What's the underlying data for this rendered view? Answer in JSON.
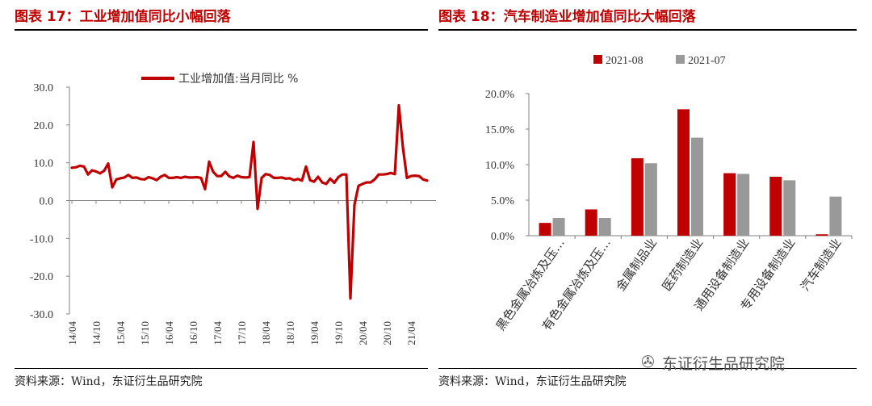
{
  "left_title": "图表 17：工业增加值同比小幅回落",
  "right_title": "图表 18：汽车制造业增加值同比大幅回落",
  "left_source": "资料来源：Wind，东证衍生品研究院",
  "right_source": "资料来源：Wind，东证衍生品研究院",
  "watermark": "东证衍生品研究院",
  "watermark_icon": "wechat-icon",
  "colors": {
    "red": "#c00000",
    "gray": "#999999",
    "axis": "#808080"
  },
  "chart_data": [
    {
      "type": "line",
      "series": [
        {
          "name": "工业增加值:当月同比 %",
          "x": [
            "2014-04",
            "2014-05",
            "2014-06",
            "2014-07",
            "2014-08",
            "2014-09",
            "2014-10",
            "2014-11",
            "2014-12",
            "2015-01",
            "2015-02",
            "2015-03",
            "2015-04",
            "2015-05",
            "2015-06",
            "2015-07",
            "2015-08",
            "2015-09",
            "2015-10",
            "2015-11",
            "2015-12",
            "2016-01",
            "2016-02",
            "2016-03",
            "2016-04",
            "2016-05",
            "2016-06",
            "2016-07",
            "2016-08",
            "2016-09",
            "2016-10",
            "2016-11",
            "2016-12",
            "2017-01",
            "2017-02",
            "2017-03",
            "2017-04",
            "2017-05",
            "2017-06",
            "2017-07",
            "2017-08",
            "2017-09",
            "2017-10",
            "2017-11",
            "2017-12",
            "2018-01",
            "2018-02",
            "2018-03",
            "2018-04",
            "2018-05",
            "2018-06",
            "2018-07",
            "2018-08",
            "2018-09",
            "2018-10",
            "2018-11",
            "2018-12",
            "2019-01",
            "2019-02",
            "2019-03",
            "2019-04",
            "2019-05",
            "2019-06",
            "2019-07",
            "2019-08",
            "2019-09",
            "2019-10",
            "2019-11",
            "2019-12",
            "2020-01",
            "2020-02",
            "2020-03",
            "2020-04",
            "2020-05",
            "2020-06",
            "2020-07",
            "2020-08",
            "2020-09",
            "2020-10",
            "2020-11",
            "2020-12",
            "2021-01",
            "2021-02",
            "2021-03",
            "2021-04",
            "2021-05",
            "2021-06",
            "2021-07",
            "2021-08"
          ],
          "values": [
            8.7,
            8.8,
            9.2,
            9.0,
            6.9,
            8.0,
            7.7,
            7.2,
            7.9,
            9.8,
            3.5,
            5.6,
            5.9,
            6.1,
            6.8,
            6.0,
            6.1,
            5.7,
            5.6,
            6.2,
            5.9,
            5.4,
            6.3,
            6.8,
            6.0,
            6.0,
            6.2,
            6.0,
            6.3,
            6.1,
            6.1,
            6.2,
            6.0,
            3.0,
            10.3,
            7.6,
            6.5,
            6.5,
            7.6,
            6.4,
            6.0,
            6.6,
            6.2,
            6.1,
            6.2,
            15.5,
            -2.2,
            6.0,
            7.0,
            6.8,
            6.0,
            6.0,
            6.1,
            5.8,
            5.9,
            5.4,
            5.7,
            5.3,
            9.0,
            5.4,
            5.0,
            6.3,
            4.8,
            4.4,
            5.8,
            4.7,
            6.2,
            6.9,
            6.9,
            -25.9,
            -1.1,
            3.9,
            4.4,
            4.8,
            4.8,
            5.6,
            6.9,
            6.9,
            7.0,
            7.3,
            7.0,
            25.2,
            14.1,
            6.0,
            6.5,
            6.6,
            6.5,
            5.6,
            5.3
          ]
        }
      ],
      "x_tick_labels": [
        "14/04",
        "14/10",
        "15/04",
        "15/10",
        "16/04",
        "16/10",
        "17/04",
        "17/10",
        "18/04",
        "18/10",
        "19/04",
        "19/10",
        "20/04",
        "20/10",
        "21/04"
      ],
      "y_tick_labels": [
        "30.0",
        "20.0",
        "10.0",
        "0.0",
        "-10.0",
        "-20.0",
        "-30.0"
      ],
      "ylim": [
        -30,
        30
      ],
      "grid": false,
      "legend": "top"
    },
    {
      "type": "bar",
      "categories": [
        "黑色金属冶炼及压…",
        "有色金属冶炼及压…",
        "金属制品业",
        "医药制造业",
        "通用设备制造业",
        "专用设备制造业",
        "汽车制造业"
      ],
      "series": [
        {
          "name": "2021-08",
          "values": [
            1.8,
            3.7,
            10.9,
            17.8,
            8.8,
            8.3,
            0.2
          ]
        },
        {
          "name": "2021-07",
          "values": [
            2.5,
            2.5,
            10.2,
            13.8,
            8.7,
            7.8,
            5.5
          ]
        }
      ],
      "y_tick_labels": [
        "20.0%",
        "15.0%",
        "10.0%",
        "5.0%",
        "0.0%"
      ],
      "ylim": [
        0,
        20
      ],
      "grid": false,
      "legend": "top"
    }
  ]
}
